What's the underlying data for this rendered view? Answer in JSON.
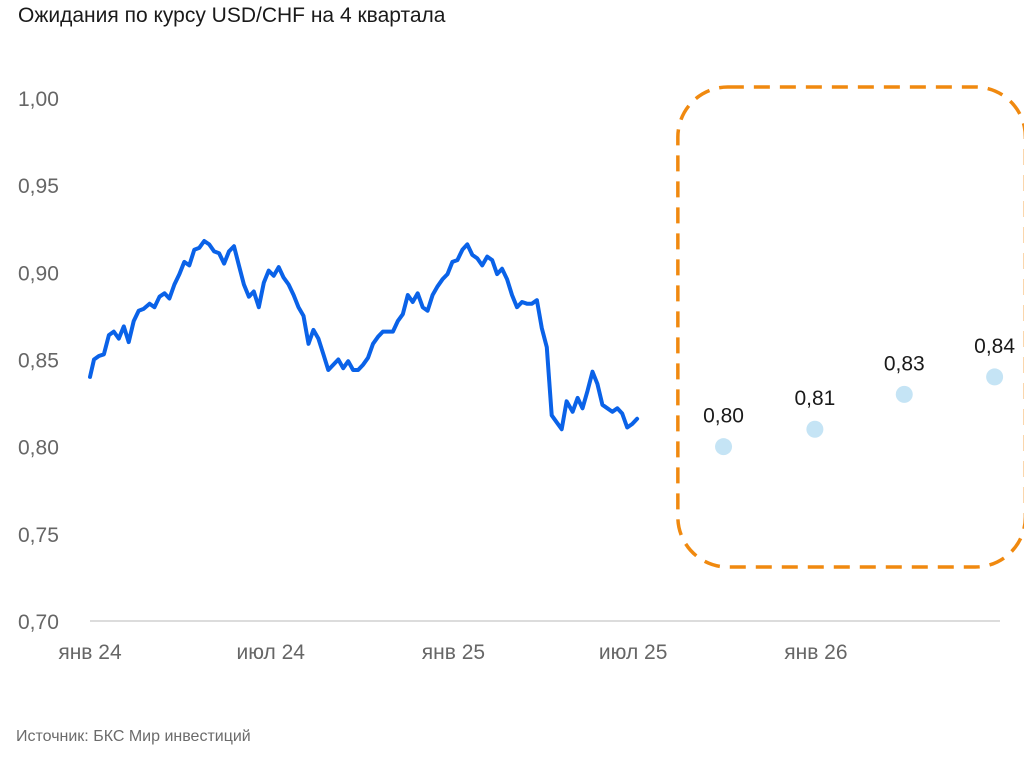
{
  "title": "Ожидания по курсу USD/CHF на 4 квартала",
  "source": "Источник: БКС Мир инвестиций",
  "colors": {
    "history": "#0a62e8",
    "forecast": "#c5e4f5",
    "highlight": "#f0890f",
    "axis": "#d0d0d0",
    "ticks": "#666666"
  },
  "chart_data": {
    "type": "line",
    "ylim": [
      0.7,
      1.0
    ],
    "yticks": [
      "1,00",
      "0,95",
      "0,90",
      "0,85",
      "0,80",
      "0,75",
      "0,70"
    ],
    "ytick_values": [
      1.0,
      0.95,
      0.9,
      0.85,
      0.8,
      0.75,
      0.7
    ],
    "xtick_labels": [
      "янв 24",
      "июл 24",
      "янв 25",
      "июл 25",
      "янв 26"
    ],
    "xtick_dates": [
      "2024-01-01",
      "2024-07-01",
      "2025-01-01",
      "2025-07-01",
      "2026-01-01"
    ],
    "xlim": [
      "2024-01-01",
      "2026-07-15"
    ],
    "series": [
      {
        "name": "",
        "style": "line",
        "points": [
          [
            "2024-01-01",
            0.84
          ],
          [
            "2024-01-05",
            0.85
          ],
          [
            "2024-01-10",
            0.852
          ],
          [
            "2024-01-15",
            0.853
          ],
          [
            "2024-01-20",
            0.864
          ],
          [
            "2024-01-25",
            0.866
          ],
          [
            "2024-01-30",
            0.862
          ],
          [
            "2024-02-04",
            0.869
          ],
          [
            "2024-02-09",
            0.86
          ],
          [
            "2024-02-14",
            0.872
          ],
          [
            "2024-02-19",
            0.878
          ],
          [
            "2024-02-24",
            0.879
          ],
          [
            "2024-03-01",
            0.882
          ],
          [
            "2024-03-06",
            0.88
          ],
          [
            "2024-03-11",
            0.886
          ],
          [
            "2024-03-16",
            0.888
          ],
          [
            "2024-03-21",
            0.885
          ],
          [
            "2024-03-26",
            0.893
          ],
          [
            "2024-03-31",
            0.899
          ],
          [
            "2024-04-05",
            0.906
          ],
          [
            "2024-04-10",
            0.904
          ],
          [
            "2024-04-15",
            0.913
          ],
          [
            "2024-04-20",
            0.914
          ],
          [
            "2024-04-25",
            0.918
          ],
          [
            "2024-04-30",
            0.916
          ],
          [
            "2024-05-05",
            0.912
          ],
          [
            "2024-05-10",
            0.911
          ],
          [
            "2024-05-15",
            0.905
          ],
          [
            "2024-05-20",
            0.912
          ],
          [
            "2024-05-25",
            0.915
          ],
          [
            "2024-05-30",
            0.904
          ],
          [
            "2024-06-04",
            0.893
          ],
          [
            "2024-06-09",
            0.886
          ],
          [
            "2024-06-14",
            0.889
          ],
          [
            "2024-06-19",
            0.88
          ],
          [
            "2024-06-24",
            0.894
          ],
          [
            "2024-06-29",
            0.901
          ],
          [
            "2024-07-04",
            0.898
          ],
          [
            "2024-07-09",
            0.903
          ],
          [
            "2024-07-14",
            0.897
          ],
          [
            "2024-07-19",
            0.893
          ],
          [
            "2024-07-24",
            0.887
          ],
          [
            "2024-07-29",
            0.88
          ],
          [
            "2024-08-03",
            0.875
          ],
          [
            "2024-08-08",
            0.859
          ],
          [
            "2024-08-13",
            0.867
          ],
          [
            "2024-08-18",
            0.862
          ],
          [
            "2024-08-23",
            0.853
          ],
          [
            "2024-08-28",
            0.844
          ],
          [
            "2024-09-02",
            0.847
          ],
          [
            "2024-09-07",
            0.85
          ],
          [
            "2024-09-12",
            0.845
          ],
          [
            "2024-09-17",
            0.849
          ],
          [
            "2024-09-22",
            0.844
          ],
          [
            "2024-09-27",
            0.844
          ],
          [
            "2024-10-02",
            0.847
          ],
          [
            "2024-10-07",
            0.851
          ],
          [
            "2024-10-12",
            0.859
          ],
          [
            "2024-10-17",
            0.863
          ],
          [
            "2024-10-22",
            0.866
          ],
          [
            "2024-10-27",
            0.866
          ],
          [
            "2024-11-01",
            0.866
          ],
          [
            "2024-11-06",
            0.872
          ],
          [
            "2024-11-11",
            0.876
          ],
          [
            "2024-11-16",
            0.887
          ],
          [
            "2024-11-21",
            0.883
          ],
          [
            "2024-11-26",
            0.888
          ],
          [
            "2024-12-01",
            0.88
          ],
          [
            "2024-12-06",
            0.878
          ],
          [
            "2024-12-11",
            0.887
          ],
          [
            "2024-12-16",
            0.892
          ],
          [
            "2024-12-21",
            0.896
          ],
          [
            "2024-12-26",
            0.899
          ],
          [
            "2024-12-31",
            0.906
          ],
          [
            "2025-01-05",
            0.907
          ],
          [
            "2025-01-10",
            0.913
          ],
          [
            "2025-01-15",
            0.916
          ],
          [
            "2025-01-20",
            0.91
          ],
          [
            "2025-01-25",
            0.908
          ],
          [
            "2025-01-30",
            0.904
          ],
          [
            "2025-02-04",
            0.909
          ],
          [
            "2025-02-09",
            0.907
          ],
          [
            "2025-02-14",
            0.899
          ],
          [
            "2025-02-19",
            0.902
          ],
          [
            "2025-02-24",
            0.896
          ],
          [
            "2025-03-01",
            0.887
          ],
          [
            "2025-03-06",
            0.88
          ],
          [
            "2025-03-11",
            0.883
          ],
          [
            "2025-03-16",
            0.882
          ],
          [
            "2025-03-21",
            0.882
          ],
          [
            "2025-03-26",
            0.884
          ],
          [
            "2025-03-31",
            0.868
          ],
          [
            "2025-04-05",
            0.857
          ],
          [
            "2025-04-10",
            0.818
          ],
          [
            "2025-04-15",
            0.814
          ],
          [
            "2025-04-20",
            0.81
          ],
          [
            "2025-04-25",
            0.826
          ],
          [
            "2025-05-01",
            0.82
          ],
          [
            "2025-05-06",
            0.828
          ],
          [
            "2025-05-11",
            0.822
          ],
          [
            "2025-05-16",
            0.832
          ],
          [
            "2025-05-21",
            0.843
          ],
          [
            "2025-05-26",
            0.836
          ],
          [
            "2025-05-31",
            0.824
          ],
          [
            "2025-06-05",
            0.822
          ],
          [
            "2025-06-10",
            0.82
          ],
          [
            "2025-06-15",
            0.822
          ],
          [
            "2025-06-20",
            0.819
          ],
          [
            "2025-06-25",
            0.811
          ],
          [
            "2025-06-30",
            0.813
          ],
          [
            "2025-07-05",
            0.816
          ]
        ]
      },
      {
        "name": "",
        "style": "points",
        "points": [
          [
            "2025-09-30",
            0.8,
            "0,80"
          ],
          [
            "2025-12-31",
            0.81,
            "0,81"
          ],
          [
            "2026-03-31",
            0.83,
            "0,83"
          ],
          [
            "2026-06-30",
            0.84,
            "0,84"
          ]
        ]
      }
    ],
    "highlight_box": {
      "from": "2025-08-15",
      "to": "2026-07-31",
      "style": "dashed"
    },
    "grid": false
  }
}
